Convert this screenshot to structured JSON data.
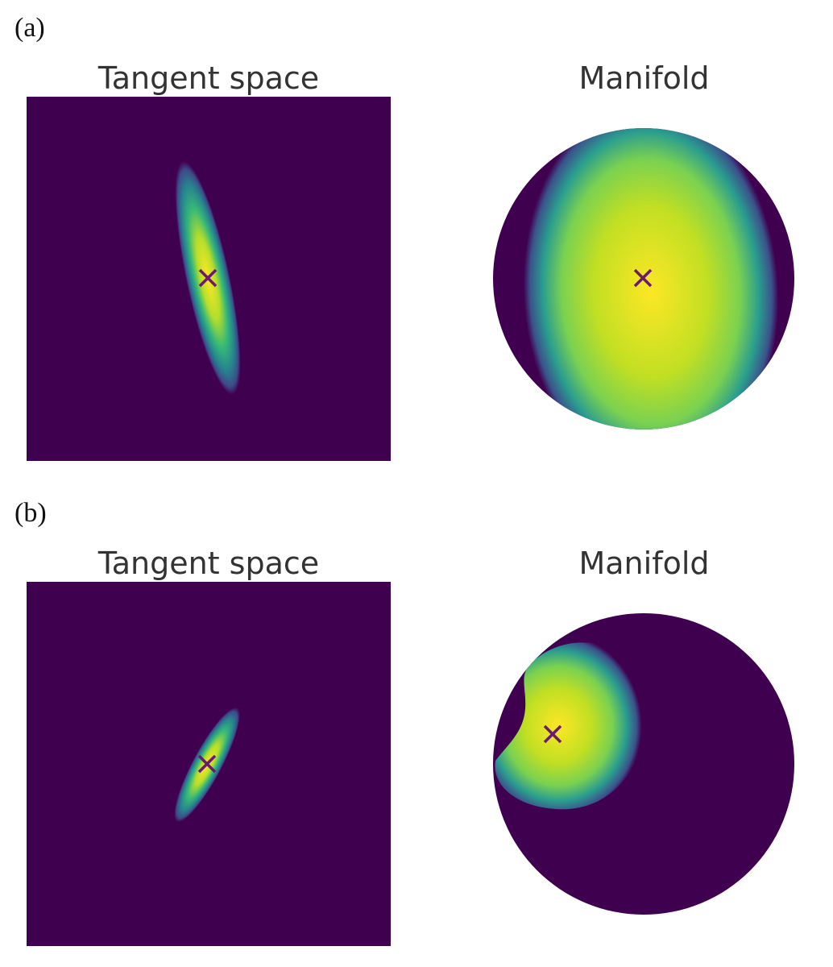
{
  "panels": [
    {
      "label": "(a)",
      "left_title": "Tangent space",
      "right_title": "Manifold"
    },
    {
      "label": "(b)",
      "left_title": "Tangent space",
      "right_title": "Manifold"
    }
  ],
  "colors": {
    "background": "#440154",
    "field_dark": "#3f004f",
    "high": "#fde725",
    "marker": "#6a1b6f"
  },
  "colormap": "viridis",
  "marker_symbol": "×"
}
